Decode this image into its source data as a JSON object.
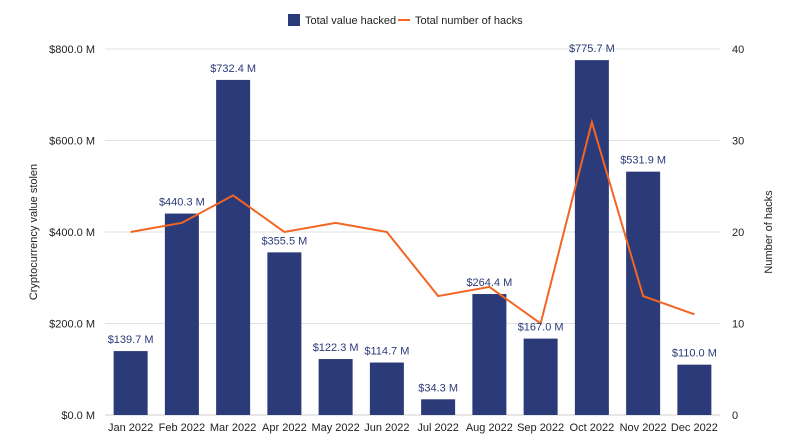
{
  "chart_data": {
    "type": "bar",
    "categories": [
      "Jan 2022",
      "Feb 2022",
      "Mar 2022",
      "Apr 2022",
      "May 2022",
      "Jun 2022",
      "Jul 2022",
      "Aug 2022",
      "Sep 2022",
      "Oct 2022",
      "Nov 2022",
      "Dec 2022"
    ],
    "series": [
      {
        "name": "Total value hacked",
        "type": "bar",
        "axis": "left",
        "color": "#2b3a78",
        "values": [
          139.7,
          440.3,
          732.4,
          355.5,
          122.3,
          114.7,
          34.3,
          264.4,
          167.0,
          775.7,
          531.9,
          110.0
        ],
        "labels": [
          "$139.7 M",
          "$440.3 M",
          "$732.4 M",
          "$355.5 M",
          "$122.3 M",
          "$114.7 M",
          "$34.3 M",
          "$264.4 M",
          "$167.0 M",
          "$775.7 M",
          "$531.9 M",
          "$110.0 M"
        ]
      },
      {
        "name": "Total number of hacks",
        "type": "line",
        "axis": "right",
        "color": "#f26522",
        "values": [
          20,
          21,
          24,
          20,
          21,
          20,
          13,
          14,
          10,
          32,
          13,
          11
        ]
      }
    ],
    "ylabel": "Cryptocurrency value stolen",
    "y2label": "Number of hacks",
    "ylim": [
      0,
      800
    ],
    "y2lim": [
      0,
      40
    ],
    "yticks": [
      0,
      200,
      400,
      600,
      800
    ],
    "ytick_labels": [
      "$0.0 M",
      "$200.0 M",
      "$400.0 M",
      "$600.0 M",
      "$800.0 M"
    ],
    "y2ticks": [
      0,
      10,
      20,
      30,
      40
    ],
    "y2tick_labels": [
      "0",
      "10",
      "20",
      "30",
      "40"
    ],
    "grid": true,
    "legend": "top-center"
  }
}
